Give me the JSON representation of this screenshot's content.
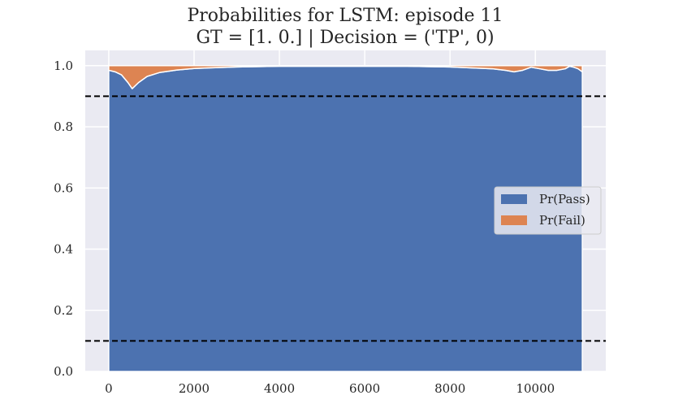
{
  "chart_data": {
    "type": "area",
    "stacked": true,
    "title": "Probabilities for LSTM: episode 11",
    "subtitle": "GT = [1. 0.] | Decision = ('TP', 0)",
    "xlabel": "",
    "ylabel": "",
    "xlim": [
      -550,
      11650
    ],
    "ylim": [
      0.0,
      1.05
    ],
    "xticks": [
      0,
      2000,
      4000,
      6000,
      8000,
      10000
    ],
    "yticks": [
      0.0,
      0.2,
      0.4,
      0.6,
      0.8,
      1.0
    ],
    "xtick_labels": [
      "0",
      "2000",
      "4000",
      "6000",
      "8000",
      "10000"
    ],
    "ytick_labels": [
      "0.0",
      "0.2",
      "0.4",
      "0.6",
      "0.8",
      "1.0"
    ],
    "grid": true,
    "background": "#eaeaf2",
    "legend_position": "center-right",
    "x": [
      0,
      150,
      300,
      450,
      550,
      700,
      900,
      1200,
      1600,
      2000,
      3000,
      4000,
      5000,
      6000,
      7000,
      8000,
      9000,
      9300,
      9500,
      9700,
      9900,
      10100,
      10300,
      10500,
      10700,
      10800,
      10900,
      11000,
      11100
    ],
    "series": [
      {
        "name": "Pr(Pass)",
        "color": "#4c72b0",
        "values": [
          0.985,
          0.98,
          0.97,
          0.945,
          0.925,
          0.945,
          0.965,
          0.978,
          0.986,
          0.991,
          0.996,
          0.998,
          0.998,
          0.998,
          0.998,
          0.996,
          0.99,
          0.985,
          0.98,
          0.985,
          0.995,
          0.99,
          0.985,
          0.985,
          0.99,
          0.998,
          0.995,
          0.99,
          0.98
        ]
      },
      {
        "name": "Pr(Fail)",
        "color": "#dd8452",
        "values": [
          0.015,
          0.02,
          0.03,
          0.055,
          0.075,
          0.055,
          0.035,
          0.022,
          0.014,
          0.009,
          0.004,
          0.002,
          0.002,
          0.002,
          0.002,
          0.004,
          0.01,
          0.015,
          0.02,
          0.015,
          0.005,
          0.01,
          0.015,
          0.015,
          0.01,
          0.002,
          0.005,
          0.01,
          0.02
        ]
      }
    ],
    "hlines": [
      {
        "y": 0.9,
        "style": "dashed",
        "color": "#000000"
      },
      {
        "y": 0.1,
        "style": "dashed",
        "color": "#000000"
      }
    ]
  }
}
